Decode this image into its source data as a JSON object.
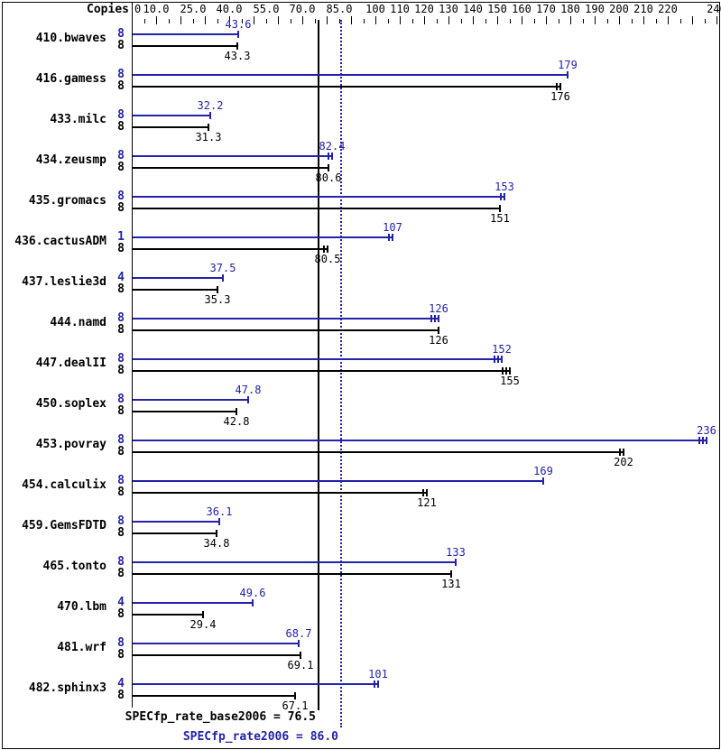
{
  "header": {
    "copies_label": "Copies"
  },
  "colors": {
    "peak": "#2222aa",
    "base": "#000000"
  },
  "chart_data": {
    "type": "bar",
    "orientation": "horizontal",
    "title": "",
    "xlabel": "",
    "ylabel": "",
    "xlim": [
      0,
      240
    ],
    "grid": false,
    "axis_labels": [
      {
        "v": 0,
        "t": "0"
      },
      {
        "v": 10,
        "t": "10.0"
      },
      {
        "v": 25,
        "t": "25.0"
      },
      {
        "v": 40,
        "t": "40.0"
      },
      {
        "v": 55,
        "t": "55.0"
      },
      {
        "v": 70,
        "t": "70.0"
      },
      {
        "v": 85,
        "t": "85.0"
      },
      {
        "v": 100,
        "t": "100"
      },
      {
        "v": 110,
        "t": "110"
      },
      {
        "v": 120,
        "t": "120"
      },
      {
        "v": 130,
        "t": "130"
      },
      {
        "v": 140,
        "t": "140"
      },
      {
        "v": 150,
        "t": "150"
      },
      {
        "v": 160,
        "t": "160"
      },
      {
        "v": 170,
        "t": "170"
      },
      {
        "v": 180,
        "t": "180"
      },
      {
        "v": 190,
        "t": "190"
      },
      {
        "v": 200,
        "t": "200"
      },
      {
        "v": 210,
        "t": "210"
      },
      {
        "v": 220,
        "t": "220"
      },
      {
        "v": 240,
        "t": "240"
      }
    ],
    "minor_tick_step": 5,
    "major_tick_step": 10,
    "categories": [
      "410.bwaves",
      "416.gamess",
      "433.milc",
      "434.zeusmp",
      "435.gromacs",
      "436.cactusADM",
      "437.leslie3d",
      "444.namd",
      "447.dealII",
      "450.soplex",
      "453.povray",
      "454.calculix",
      "459.GemsFDTD",
      "465.tonto",
      "470.lbm",
      "481.wrf",
      "482.sphinx3"
    ],
    "series": [
      {
        "name": "peak",
        "color": "#2222aa",
        "copies": [
          "8",
          "8",
          "8",
          "8",
          "8",
          "1",
          "4",
          "8",
          "8",
          "8",
          "8",
          "8",
          "8",
          "8",
          "4",
          "8",
          "4"
        ],
        "values": [
          43.6,
          179,
          32.2,
          82.4,
          153,
          107,
          37.5,
          126,
          152,
          47.8,
          236,
          169,
          36.1,
          133,
          49.6,
          68.7,
          101
        ],
        "labels": [
          "43.6",
          "179",
          "32.2",
          "82.4",
          "153",
          "107",
          "37.5",
          "126",
          "152",
          "47.8",
          "236",
          "169",
          "36.1",
          "133",
          "49.6",
          "68.7",
          "101"
        ],
        "end_ticks": [
          1,
          1,
          1,
          2,
          2,
          2,
          1,
          3,
          3,
          1,
          3,
          1,
          1,
          1,
          1,
          1,
          2
        ]
      },
      {
        "name": "base",
        "color": "#000000",
        "copies": [
          "8",
          "8",
          "8",
          "8",
          "8",
          "8",
          "8",
          "8",
          "8",
          "8",
          "8",
          "8",
          "8",
          "8",
          "8",
          "8",
          "8"
        ],
        "values": [
          43.3,
          176,
          31.3,
          80.6,
          151,
          80.5,
          35.3,
          126,
          155,
          42.8,
          202,
          121,
          34.8,
          131,
          29.4,
          69.1,
          67.1
        ],
        "labels": [
          "43.3",
          "176",
          "31.3",
          "80.6",
          "151",
          "80.5",
          "35.3",
          "126",
          "155",
          "42.8",
          "202",
          "121",
          "34.8",
          "131",
          "29.4",
          "69.1",
          "67.1"
        ],
        "end_ticks": [
          1,
          2,
          1,
          1,
          1,
          2,
          1,
          1,
          3,
          1,
          2,
          2,
          1,
          1,
          1,
          1,
          1
        ]
      }
    ],
    "reference_lines": [
      {
        "name": "base_mean",
        "label": "SPECfp_rate_base2006 = 76.5",
        "value": 76.5,
        "style": "solid",
        "color": "#000000"
      },
      {
        "name": "peak_mean",
        "label": "SPECfp_rate2006 = 86.0",
        "value": 86.0,
        "style": "dotted",
        "color": "#2222aa"
      }
    ]
  }
}
